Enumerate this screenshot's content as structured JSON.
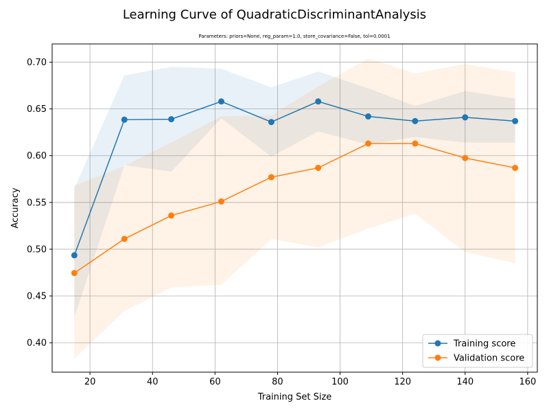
{
  "chart_data": {
    "type": "line",
    "title": "Learning Curve of QuadraticDiscriminantAnalysis",
    "subtitle": "Parameters: priors=None, reg_param=1.0, store_covariance=False, tol=0.0001",
    "xlabel": "Training Set Size",
    "ylabel": "Accuracy",
    "xlim": [
      7.9,
      163.1
    ],
    "ylim": [
      0.3685,
      0.7195
    ],
    "xticks": [
      20,
      40,
      60,
      80,
      100,
      120,
      140,
      160
    ],
    "yticks": [
      0.4,
      0.45,
      0.5,
      0.55,
      0.6,
      0.65,
      0.7
    ],
    "grid": true,
    "legend_position": "lower-right",
    "x": [
      15,
      31,
      46,
      62,
      78,
      93,
      109,
      124,
      140,
      156
    ],
    "series": [
      {
        "name": "Training score",
        "color": "#1f77b4",
        "band_color": "#1f77b4",
        "values": [
          0.4935,
          0.6385,
          0.639,
          0.658,
          0.636,
          0.658,
          0.642,
          0.637,
          0.641,
          0.637
        ],
        "upper": [
          0.565,
          0.686,
          0.695,
          0.693,
          0.673,
          0.69,
          0.672,
          0.653,
          0.669,
          0.661
        ],
        "lower": [
          0.427,
          0.59,
          0.583,
          0.64,
          0.599,
          0.626,
          0.612,
          0.62,
          0.614,
          0.614
        ]
      },
      {
        "name": "Validation score",
        "color": "#ff7f0e",
        "band_color": "#ff7f0e",
        "values": [
          0.4745,
          0.511,
          0.536,
          0.551,
          0.577,
          0.587,
          0.613,
          0.613,
          0.5975,
          0.587
        ],
        "upper": [
          0.568,
          0.589,
          0.614,
          0.642,
          0.643,
          0.674,
          0.704,
          0.688,
          0.698,
          0.689
        ],
        "lower": [
          0.383,
          0.434,
          0.459,
          0.462,
          0.511,
          0.502,
          0.522,
          0.538,
          0.497,
          0.485
        ]
      }
    ]
  }
}
